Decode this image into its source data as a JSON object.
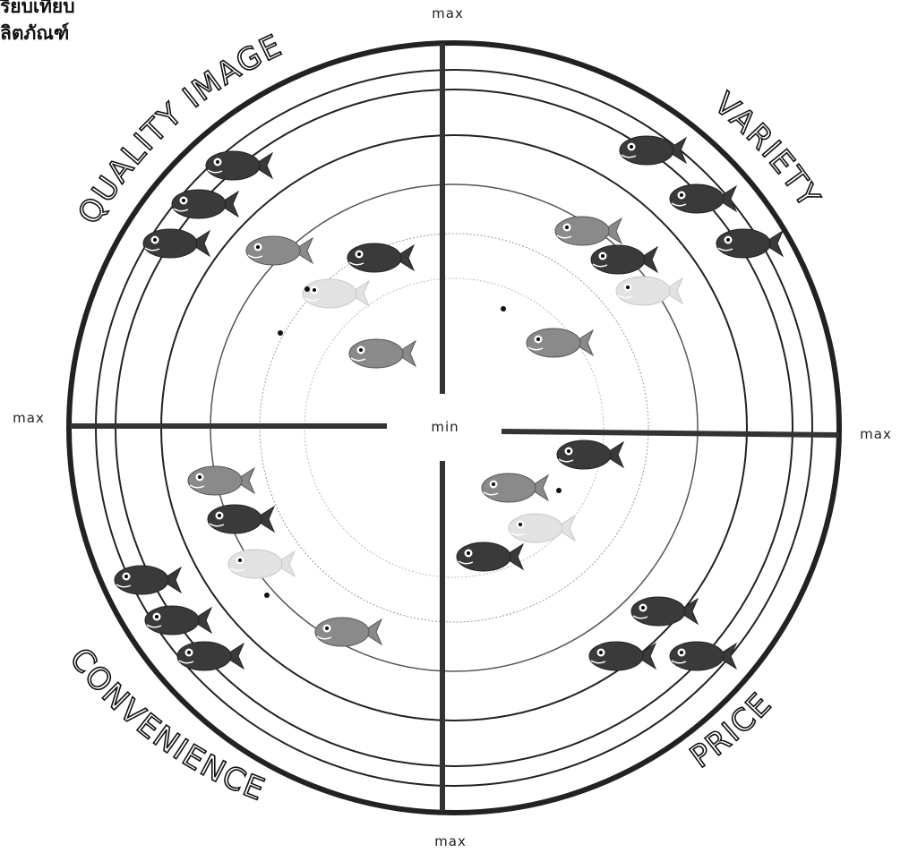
{
  "header": {
    "title_lines": [
      "รียบเทียบ",
      "ลิตภัณฑ์"
    ]
  },
  "axis_labels": {
    "top": "max",
    "left": "max",
    "right": "max",
    "bottom": "max",
    "center": "min"
  },
  "quadrants": [
    "QUALITY IMAGE",
    "VARIETY",
    "CONVENIENCE",
    "PRICE"
  ]
}
